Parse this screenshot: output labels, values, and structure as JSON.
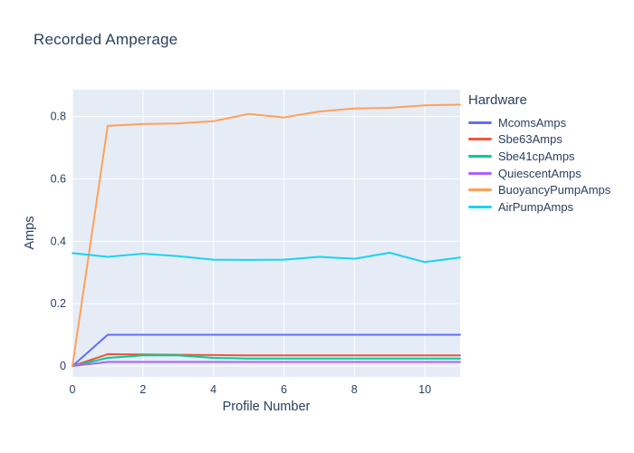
{
  "page": {
    "title": "Recorded Amperage"
  },
  "chart_data": {
    "type": "line",
    "title": "Recorded Amperage",
    "xlabel": "Profile Number",
    "ylabel": "Amps",
    "legend_title": "Hardware",
    "legend_position": "right",
    "grid": true,
    "colors": {
      "paper_background": "#FFFFFF",
      "plot_background": "#E5ECF6",
      "gridline": "#FFFFFF",
      "text": "#2A3F5F"
    },
    "x": [
      0,
      1,
      2,
      3,
      4,
      5,
      6,
      7,
      8,
      9,
      10,
      11
    ],
    "xlim": [
      0,
      11
    ],
    "ylim": [
      -0.035,
      0.886
    ],
    "xticks": [
      0,
      2,
      4,
      6,
      8,
      10
    ],
    "xtick_labels": [
      "0",
      "2",
      "4",
      "6",
      "8",
      "10"
    ],
    "yticks": [
      0,
      0.2,
      0.4,
      0.6,
      0.8
    ],
    "ytick_labels": [
      "0",
      "0.2",
      "0.4",
      "0.6",
      "0.8"
    ],
    "series": [
      {
        "name": "McomsAmps",
        "color": "#636EFA",
        "values": [
          0,
          0.1,
          0.1,
          0.1,
          0.1,
          0.1,
          0.1,
          0.1,
          0.1,
          0.1,
          0.1,
          0.1
        ]
      },
      {
        "name": "Sbe63Amps",
        "color": "#EF553B",
        "values": [
          0,
          0.038,
          0.037,
          0.036,
          0.035,
          0.034,
          0.034,
          0.034,
          0.034,
          0.034,
          0.034,
          0.034
        ]
      },
      {
        "name": "Sbe41cpAmps",
        "color": "#00CC96",
        "values": [
          0,
          0.026,
          0.034,
          0.034,
          0.026,
          0.024,
          0.024,
          0.024,
          0.024,
          0.024,
          0.024,
          0.024
        ]
      },
      {
        "name": "QuiescentAmps",
        "color": "#AB63FA",
        "values": [
          0,
          0.013,
          0.013,
          0.013,
          0.013,
          0.013,
          0.013,
          0.013,
          0.013,
          0.013,
          0.013,
          0.013
        ]
      },
      {
        "name": "BuoyancyPumpAmps",
        "color": "#FFA15A",
        "values": [
          0,
          0.77,
          0.776,
          0.778,
          0.785,
          0.808,
          0.797,
          0.816,
          0.826,
          0.828,
          0.836,
          0.838
        ]
      },
      {
        "name": "AirPumpAmps",
        "color": "#19D3F3",
        "values": [
          0.362,
          0.35,
          0.36,
          0.352,
          0.341,
          0.34,
          0.341,
          0.35,
          0.344,
          0.363,
          0.333,
          0.348
        ]
      }
    ]
  }
}
